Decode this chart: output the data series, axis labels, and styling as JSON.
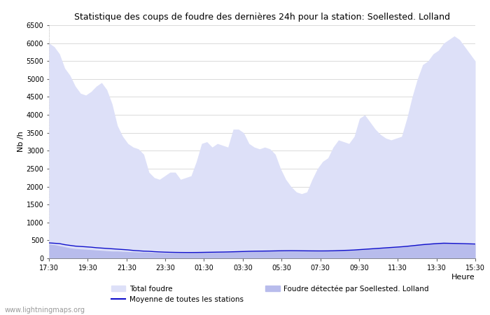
{
  "title": "Statistique des coups de foudre des dernières 24h pour la station: Soellested. Lolland",
  "xlabel": "Heure",
  "ylabel": "Nb /h",
  "watermark": "www.lightningmaps.org",
  "x_ticks": [
    "17:30",
    "19:30",
    "21:30",
    "23:30",
    "01:30",
    "03:30",
    "05:30",
    "07:30",
    "09:30",
    "11:30",
    "13:30",
    "15:30"
  ],
  "ylim": [
    0,
    6500
  ],
  "yticks": [
    0,
    500,
    1000,
    1500,
    2000,
    2500,
    3000,
    3500,
    4000,
    4500,
    5000,
    5500,
    6000,
    6500
  ],
  "total_foudre_color": "#dde0f8",
  "detected_foudre_color": "#b8bcec",
  "moyenne_color": "#1010cc",
  "background_color": "#ffffff",
  "grid_color": "#cccccc",
  "total_foudre": [
    6000,
    5900,
    5700,
    5300,
    5100,
    4800,
    4600,
    4550,
    4650,
    4800,
    4900,
    4700,
    4300,
    3700,
    3400,
    3200,
    3100,
    3050,
    2900,
    2400,
    2250,
    2200,
    2300,
    2400,
    2400,
    2200,
    2250,
    2300,
    2700,
    3200,
    3250,
    3100,
    3200,
    3150,
    3100,
    3600,
    3600,
    3500,
    3200,
    3100,
    3050,
    3100,
    3050,
    2900,
    2500,
    2200,
    2000,
    1850,
    1800,
    1850,
    2200,
    2500,
    2700,
    2800,
    3100,
    3300,
    3250,
    3200,
    3400,
    3900,
    4000,
    3800,
    3600,
    3450,
    3350,
    3300,
    3350,
    3400,
    3900,
    4500,
    5000,
    5400,
    5500,
    5700,
    5800,
    6000,
    6100,
    6200,
    6100,
    5900,
    5700,
    5500
  ],
  "detected_foudre": [
    400,
    380,
    350,
    320,
    290,
    270,
    260,
    250,
    240,
    230,
    220,
    210,
    200,
    200,
    190,
    185,
    180,
    175,
    170,
    165,
    160,
    158,
    155,
    155,
    155,
    155,
    155,
    160,
    165,
    170,
    175,
    175,
    178,
    180,
    182,
    185,
    190,
    195,
    200,
    200,
    200,
    205,
    205,
    210,
    215,
    215,
    215,
    215,
    210,
    210,
    215,
    215,
    215,
    220,
    225,
    230,
    235,
    240,
    245,
    255,
    265,
    275,
    285,
    295,
    305,
    315,
    325,
    335,
    350,
    370,
    390,
    410,
    420,
    430,
    440,
    450,
    440,
    430,
    420,
    410,
    400,
    390
  ],
  "moyenne": [
    430,
    420,
    410,
    380,
    360,
    340,
    330,
    320,
    310,
    295,
    285,
    275,
    265,
    255,
    245,
    235,
    220,
    210,
    200,
    195,
    185,
    178,
    172,
    168,
    165,
    163,
    162,
    162,
    163,
    165,
    168,
    170,
    173,
    175,
    178,
    182,
    186,
    190,
    195,
    198,
    200,
    202,
    204,
    207,
    210,
    212,
    213,
    212,
    210,
    208,
    207,
    206,
    206,
    207,
    210,
    215,
    220,
    225,
    232,
    242,
    252,
    262,
    272,
    282,
    292,
    302,
    312,
    322,
    335,
    350,
    365,
    380,
    392,
    403,
    413,
    420,
    418,
    415,
    412,
    408,
    403,
    398
  ],
  "legend": {
    "total_foudre_label": "Total foudre",
    "detected_label": "Foudre détectée par Soellested. Lolland",
    "moyenne_label": "Moyenne de toutes les stations"
  }
}
